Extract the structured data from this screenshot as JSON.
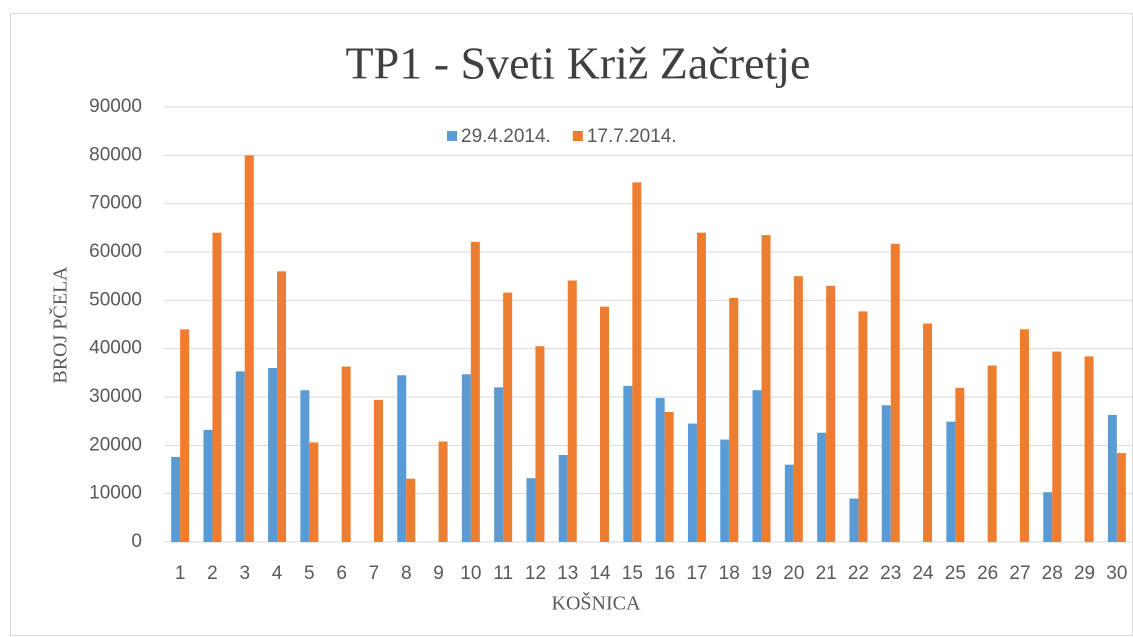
{
  "chart_data": {
    "type": "bar",
    "title": "TP1 - Sveti Križ Začretje",
    "y_label": "BROJ PČELA",
    "x_label": "KOŠNICA",
    "categories": [
      "1",
      "2",
      "3",
      "4",
      "5",
      "6",
      "7",
      "8",
      "9",
      "10",
      "11",
      "12",
      "13",
      "14",
      "15",
      "16",
      "17",
      "18",
      "19",
      "20",
      "21",
      "22",
      "23",
      "24",
      "25",
      "26",
      "27",
      "28",
      "29",
      "30"
    ],
    "series": [
      {
        "name": "29.4.2014.",
        "color": "#5b9bd5",
        "values": [
          17600,
          23200,
          35300,
          36000,
          31400,
          null,
          null,
          34500,
          null,
          34700,
          32000,
          13200,
          18000,
          null,
          32300,
          29800,
          24500,
          21200,
          31400,
          16000,
          22600,
          9000,
          28300,
          null,
          24900,
          null,
          null,
          10300,
          null,
          26300
        ]
      },
      {
        "name": "17.7.2014.",
        "color": "#ed7d31",
        "values": [
          44000,
          64000,
          80000,
          56000,
          20600,
          36300,
          29400,
          13100,
          20800,
          62100,
          51600,
          40500,
          54100,
          48700,
          74400,
          26900,
          64000,
          50500,
          63500,
          55000,
          53000,
          47700,
          61700,
          45200,
          31900,
          36500,
          44000,
          39400,
          38400,
          18400
        ]
      }
    ],
    "ylim": [
      0,
      90000
    ],
    "yticks": [
      0,
      10000,
      20000,
      30000,
      40000,
      50000,
      60000,
      70000,
      80000,
      90000
    ],
    "grid": true,
    "legend": "top"
  }
}
